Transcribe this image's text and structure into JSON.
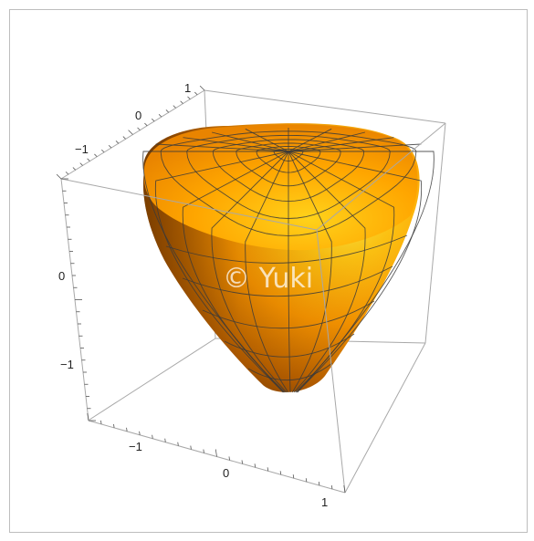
{
  "plot": {
    "type": "3d-surface",
    "surface_color": "#ff9c00",
    "highlight_color": "#ffe640",
    "shadow_color": "#6e3c00",
    "mesh_color": "#3a3a3a",
    "box_color": "#a8a8a8",
    "axis_ticks": {
      "back_axis": [
        "1",
        "0",
        "−1"
      ],
      "vertical_axis": [
        "0",
        "−1"
      ],
      "front_axis": [
        "−1",
        "0",
        "1"
      ]
    },
    "watermark": "© Yuki"
  }
}
